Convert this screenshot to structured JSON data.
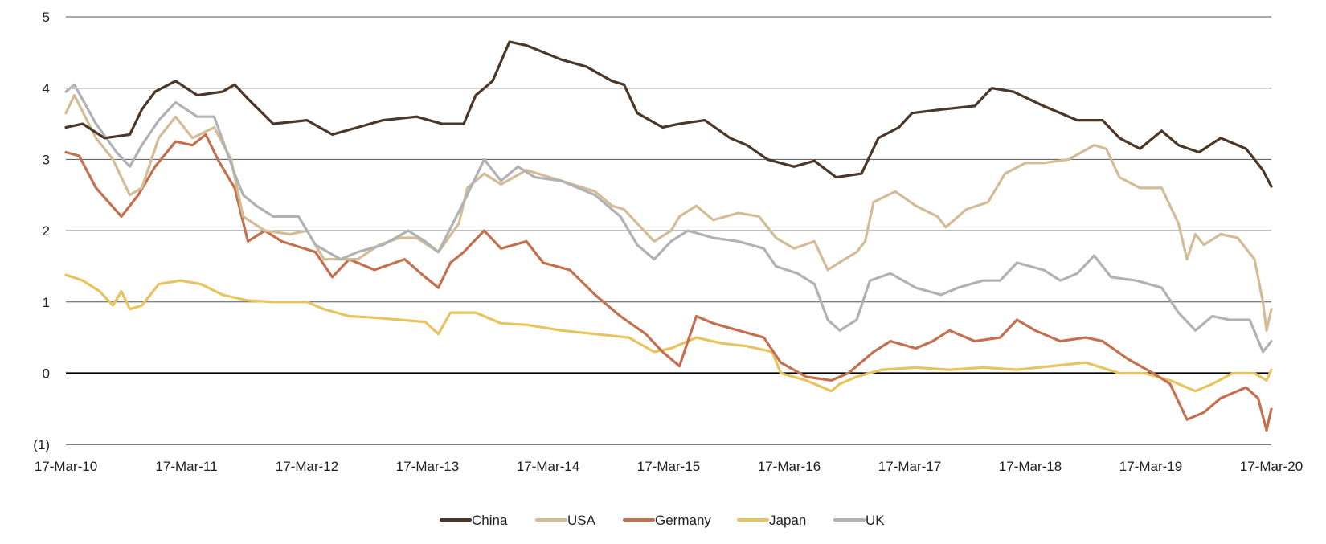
{
  "chart_data": {
    "type": "line",
    "title": "",
    "xlabel": "",
    "ylabel": "",
    "x_unit": "years since 17-Mar-10",
    "xlim": [
      0,
      10
    ],
    "ylim": [
      -1,
      5
    ],
    "yticks": [
      5,
      4,
      3,
      2,
      1,
      0,
      -1
    ],
    "ytick_labels": [
      "5",
      "4",
      "3",
      "2",
      "1",
      "0",
      "(1)"
    ],
    "xtick_labels": [
      "17-Mar-10",
      "17-Mar-11",
      "17-Mar-12",
      "17-Mar-13",
      "17-Mar-14",
      "17-Mar-15",
      "17-Mar-16",
      "17-Mar-17",
      "17-Mar-18",
      "17-Mar-19",
      "17-Mar-20"
    ],
    "grid": true,
    "legend_position": "bottom-center",
    "series": [
      {
        "name": "Japan",
        "color": "#e8c35e",
        "points": [
          [
            0,
            1.38
          ],
          [
            0.14,
            1.3
          ],
          [
            0.28,
            1.15
          ],
          [
            0.39,
            0.95
          ],
          [
            0.46,
            1.15
          ],
          [
            0.53,
            0.9
          ],
          [
            0.63,
            0.95
          ],
          [
            0.77,
            1.25
          ],
          [
            0.95,
            1.3
          ],
          [
            1.12,
            1.25
          ],
          [
            1.3,
            1.1
          ],
          [
            1.51,
            1.02
          ],
          [
            1.72,
            1.0
          ],
          [
            2.0,
            1.0
          ],
          [
            2.14,
            0.9
          ],
          [
            2.35,
            0.8
          ],
          [
            2.56,
            0.78
          ],
          [
            2.77,
            0.75
          ],
          [
            2.98,
            0.72
          ],
          [
            3.09,
            0.55
          ],
          [
            3.19,
            0.85
          ],
          [
            3.4,
            0.85
          ],
          [
            3.61,
            0.7
          ],
          [
            3.82,
            0.68
          ],
          [
            4.11,
            0.6
          ],
          [
            4.39,
            0.55
          ],
          [
            4.67,
            0.5
          ],
          [
            4.88,
            0.3
          ],
          [
            5.02,
            0.35
          ],
          [
            5.23,
            0.5
          ],
          [
            5.44,
            0.42
          ],
          [
            5.65,
            0.38
          ],
          [
            5.86,
            0.3
          ],
          [
            5.93,
            0.0
          ],
          [
            6.14,
            -0.1
          ],
          [
            6.35,
            -0.25
          ],
          [
            6.42,
            -0.15
          ],
          [
            6.56,
            -0.05
          ],
          [
            6.77,
            0.05
          ],
          [
            7.05,
            0.08
          ],
          [
            7.33,
            0.05
          ],
          [
            7.61,
            0.08
          ],
          [
            7.89,
            0.05
          ],
          [
            8.18,
            0.1
          ],
          [
            8.46,
            0.15
          ],
          [
            8.74,
            0.0
          ],
          [
            8.95,
            0.0
          ],
          [
            9.16,
            -0.1
          ],
          [
            9.37,
            -0.25
          ],
          [
            9.51,
            -0.15
          ],
          [
            9.68,
            0.0
          ],
          [
            9.86,
            0.0
          ],
          [
            9.96,
            -0.1
          ],
          [
            10,
            0.05
          ]
        ]
      },
      {
        "name": "Germany",
        "color": "#c4704f",
        "points": [
          [
            0,
            3.1
          ],
          [
            0.11,
            3.05
          ],
          [
            0.25,
            2.6
          ],
          [
            0.46,
            2.2
          ],
          [
            0.6,
            2.5
          ],
          [
            0.74,
            2.9
          ],
          [
            0.91,
            3.25
          ],
          [
            1.05,
            3.2
          ],
          [
            1.16,
            3.35
          ],
          [
            1.26,
            3.0
          ],
          [
            1.4,
            2.6
          ],
          [
            1.51,
            1.85
          ],
          [
            1.65,
            2.0
          ],
          [
            1.79,
            1.85
          ],
          [
            2.07,
            1.7
          ],
          [
            2.21,
            1.35
          ],
          [
            2.35,
            1.6
          ],
          [
            2.56,
            1.45
          ],
          [
            2.81,
            1.6
          ],
          [
            2.98,
            1.35
          ],
          [
            3.09,
            1.2
          ],
          [
            3.19,
            1.55
          ],
          [
            3.3,
            1.7
          ],
          [
            3.47,
            2.0
          ],
          [
            3.61,
            1.75
          ],
          [
            3.82,
            1.85
          ],
          [
            3.96,
            1.55
          ],
          [
            4.18,
            1.45
          ],
          [
            4.39,
            1.1
          ],
          [
            4.6,
            0.8
          ],
          [
            4.81,
            0.55
          ],
          [
            4.95,
            0.3
          ],
          [
            5.09,
            0.1
          ],
          [
            5.23,
            0.8
          ],
          [
            5.37,
            0.7
          ],
          [
            5.58,
            0.6
          ],
          [
            5.79,
            0.5
          ],
          [
            5.93,
            0.15
          ],
          [
            6.14,
            -0.05
          ],
          [
            6.35,
            -0.1
          ],
          [
            6.49,
            0.0
          ],
          [
            6.7,
            0.3
          ],
          [
            6.84,
            0.45
          ],
          [
            7.05,
            0.35
          ],
          [
            7.19,
            0.45
          ],
          [
            7.33,
            0.6
          ],
          [
            7.54,
            0.45
          ],
          [
            7.75,
            0.5
          ],
          [
            7.89,
            0.75
          ],
          [
            8.04,
            0.6
          ],
          [
            8.25,
            0.45
          ],
          [
            8.46,
            0.5
          ],
          [
            8.6,
            0.45
          ],
          [
            8.81,
            0.2
          ],
          [
            9.02,
            0.0
          ],
          [
            9.16,
            -0.15
          ],
          [
            9.3,
            -0.65
          ],
          [
            9.44,
            -0.55
          ],
          [
            9.58,
            -0.35
          ],
          [
            9.79,
            -0.2
          ],
          [
            9.89,
            -0.35
          ],
          [
            9.96,
            -0.8
          ],
          [
            10,
            -0.5
          ]
        ]
      },
      {
        "name": "USA",
        "color": "#d4bc96",
        "points": [
          [
            0,
            3.65
          ],
          [
            0.07,
            3.9
          ],
          [
            0.25,
            3.3
          ],
          [
            0.39,
            3.0
          ],
          [
            0.53,
            2.5
          ],
          [
            0.63,
            2.6
          ],
          [
            0.77,
            3.3
          ],
          [
            0.91,
            3.6
          ],
          [
            1.05,
            3.3
          ],
          [
            1.23,
            3.45
          ],
          [
            1.37,
            3.0
          ],
          [
            1.47,
            2.2
          ],
          [
            1.65,
            2.0
          ],
          [
            1.86,
            1.95
          ],
          [
            2.0,
            2.0
          ],
          [
            2.14,
            1.6
          ],
          [
            2.28,
            1.6
          ],
          [
            2.42,
            1.6
          ],
          [
            2.6,
            1.8
          ],
          [
            2.77,
            1.9
          ],
          [
            2.91,
            1.9
          ],
          [
            3.09,
            1.7
          ],
          [
            3.26,
            2.1
          ],
          [
            3.33,
            2.6
          ],
          [
            3.47,
            2.8
          ],
          [
            3.61,
            2.65
          ],
          [
            3.82,
            2.85
          ],
          [
            4.11,
            2.7
          ],
          [
            4.39,
            2.55
          ],
          [
            4.53,
            2.35
          ],
          [
            4.63,
            2.3
          ],
          [
            4.74,
            2.1
          ],
          [
            4.88,
            1.85
          ],
          [
            5.02,
            2.0
          ],
          [
            5.09,
            2.2
          ],
          [
            5.23,
            2.35
          ],
          [
            5.37,
            2.15
          ],
          [
            5.58,
            2.25
          ],
          [
            5.75,
            2.2
          ],
          [
            5.89,
            1.9
          ],
          [
            6.04,
            1.75
          ],
          [
            6.21,
            1.85
          ],
          [
            6.32,
            1.45
          ],
          [
            6.46,
            1.6
          ],
          [
            6.56,
            1.7
          ],
          [
            6.63,
            1.85
          ],
          [
            6.7,
            2.4
          ],
          [
            6.88,
            2.55
          ],
          [
            7.05,
            2.35
          ],
          [
            7.23,
            2.2
          ],
          [
            7.3,
            2.05
          ],
          [
            7.47,
            2.3
          ],
          [
            7.65,
            2.4
          ],
          [
            7.79,
            2.8
          ],
          [
            7.96,
            2.95
          ],
          [
            8.11,
            2.95
          ],
          [
            8.32,
            3.0
          ],
          [
            8.53,
            3.2
          ],
          [
            8.63,
            3.15
          ],
          [
            8.74,
            2.75
          ],
          [
            8.91,
            2.6
          ],
          [
            9.09,
            2.6
          ],
          [
            9.23,
            2.1
          ],
          [
            9.3,
            1.6
          ],
          [
            9.37,
            1.95
          ],
          [
            9.44,
            1.8
          ],
          [
            9.58,
            1.95
          ],
          [
            9.72,
            1.9
          ],
          [
            9.86,
            1.6
          ],
          [
            9.93,
            1.0
          ],
          [
            9.96,
            0.6
          ],
          [
            10,
            0.9
          ]
        ]
      },
      {
        "name": "UK",
        "color": "#b1b2b5",
        "points": [
          [
            0,
            3.95
          ],
          [
            0.07,
            4.05
          ],
          [
            0.25,
            3.5
          ],
          [
            0.42,
            3.1
          ],
          [
            0.53,
            2.9
          ],
          [
            0.63,
            3.2
          ],
          [
            0.77,
            3.55
          ],
          [
            0.91,
            3.8
          ],
          [
            1.09,
            3.6
          ],
          [
            1.23,
            3.6
          ],
          [
            1.4,
            2.8
          ],
          [
            1.47,
            2.5
          ],
          [
            1.58,
            2.35
          ],
          [
            1.72,
            2.2
          ],
          [
            1.93,
            2.2
          ],
          [
            2.07,
            1.8
          ],
          [
            2.28,
            1.6
          ],
          [
            2.42,
            1.7
          ],
          [
            2.63,
            1.8
          ],
          [
            2.84,
            2.0
          ],
          [
            2.98,
            1.85
          ],
          [
            3.09,
            1.7
          ],
          [
            3.3,
            2.4
          ],
          [
            3.47,
            3.0
          ],
          [
            3.61,
            2.7
          ],
          [
            3.75,
            2.9
          ],
          [
            3.89,
            2.75
          ],
          [
            4.11,
            2.7
          ],
          [
            4.39,
            2.5
          ],
          [
            4.6,
            2.2
          ],
          [
            4.74,
            1.8
          ],
          [
            4.88,
            1.6
          ],
          [
            5.02,
            1.85
          ],
          [
            5.16,
            2.0
          ],
          [
            5.37,
            1.9
          ],
          [
            5.58,
            1.85
          ],
          [
            5.79,
            1.75
          ],
          [
            5.89,
            1.5
          ],
          [
            6.07,
            1.4
          ],
          [
            6.21,
            1.25
          ],
          [
            6.32,
            0.75
          ],
          [
            6.42,
            0.6
          ],
          [
            6.56,
            0.75
          ],
          [
            6.67,
            1.3
          ],
          [
            6.84,
            1.4
          ],
          [
            7.05,
            1.2
          ],
          [
            7.26,
            1.1
          ],
          [
            7.4,
            1.2
          ],
          [
            7.61,
            1.3
          ],
          [
            7.75,
            1.3
          ],
          [
            7.89,
            1.55
          ],
          [
            8.11,
            1.45
          ],
          [
            8.25,
            1.3
          ],
          [
            8.39,
            1.4
          ],
          [
            8.53,
            1.65
          ],
          [
            8.67,
            1.35
          ],
          [
            8.88,
            1.3
          ],
          [
            9.09,
            1.2
          ],
          [
            9.23,
            0.85
          ],
          [
            9.37,
            0.6
          ],
          [
            9.51,
            0.8
          ],
          [
            9.65,
            0.75
          ],
          [
            9.82,
            0.75
          ],
          [
            9.93,
            0.3
          ],
          [
            10,
            0.45
          ]
        ]
      },
      {
        "name": "China",
        "color": "#4a3728",
        "points": [
          [
            0,
            3.45
          ],
          [
            0.14,
            3.5
          ],
          [
            0.32,
            3.3
          ],
          [
            0.53,
            3.35
          ],
          [
            0.63,
            3.7
          ],
          [
            0.74,
            3.95
          ],
          [
            0.91,
            4.1
          ],
          [
            1.09,
            3.9
          ],
          [
            1.3,
            3.95
          ],
          [
            1.4,
            4.05
          ],
          [
            1.51,
            3.85
          ],
          [
            1.72,
            3.5
          ],
          [
            2.0,
            3.55
          ],
          [
            2.21,
            3.35
          ],
          [
            2.42,
            3.45
          ],
          [
            2.63,
            3.55
          ],
          [
            2.91,
            3.6
          ],
          [
            3.12,
            3.5
          ],
          [
            3.3,
            3.5
          ],
          [
            3.4,
            3.9
          ],
          [
            3.54,
            4.1
          ],
          [
            3.68,
            4.65
          ],
          [
            3.82,
            4.6
          ],
          [
            4.11,
            4.4
          ],
          [
            4.32,
            4.3
          ],
          [
            4.53,
            4.1
          ],
          [
            4.63,
            4.05
          ],
          [
            4.74,
            3.65
          ],
          [
            4.95,
            3.45
          ],
          [
            5.09,
            3.5
          ],
          [
            5.3,
            3.55
          ],
          [
            5.51,
            3.3
          ],
          [
            5.65,
            3.2
          ],
          [
            5.82,
            3.0
          ],
          [
            6.04,
            2.9
          ],
          [
            6.21,
            2.98
          ],
          [
            6.39,
            2.75
          ],
          [
            6.6,
            2.8
          ],
          [
            6.74,
            3.3
          ],
          [
            6.91,
            3.45
          ],
          [
            7.02,
            3.65
          ],
          [
            7.26,
            3.7
          ],
          [
            7.54,
            3.75
          ],
          [
            7.68,
            4.0
          ],
          [
            7.86,
            3.95
          ],
          [
            8.11,
            3.75
          ],
          [
            8.39,
            3.55
          ],
          [
            8.6,
            3.55
          ],
          [
            8.74,
            3.3
          ],
          [
            8.91,
            3.15
          ],
          [
            9.09,
            3.4
          ],
          [
            9.23,
            3.2
          ],
          [
            9.4,
            3.1
          ],
          [
            9.58,
            3.3
          ],
          [
            9.79,
            3.15
          ],
          [
            9.93,
            2.85
          ],
          [
            10,
            2.62
          ]
        ]
      }
    ],
    "legend": [
      "China",
      "USA",
      "Germany",
      "Japan",
      "UK"
    ]
  }
}
